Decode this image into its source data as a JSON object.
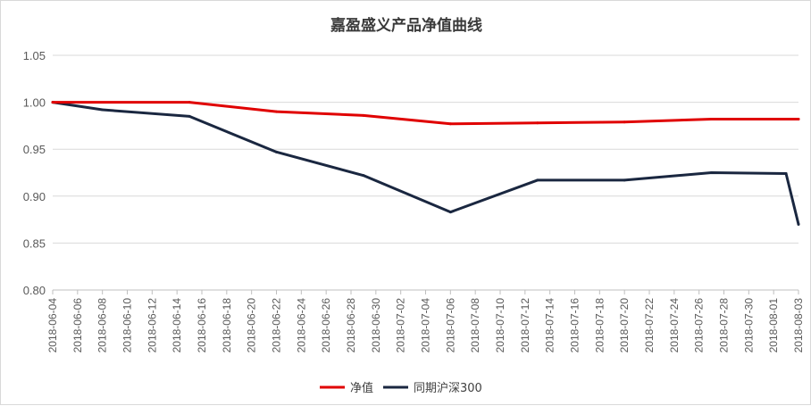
{
  "chart_data": {
    "type": "line",
    "title": "嘉盈盛义产品净值曲线",
    "xlabel": "",
    "ylabel": "",
    "ylim": [
      0.8,
      1.05
    ],
    "y_ticks": [
      "0.80",
      "0.85",
      "0.90",
      "0.95",
      "1.00",
      "1.05"
    ],
    "y_tick_values": [
      0.8,
      0.85,
      0.9,
      0.95,
      1.0,
      1.05
    ],
    "grid": true,
    "legend_position": "bottom",
    "x_axis": {
      "start": "2018-06-04",
      "end": "2018-08-03",
      "tick_labels": [
        "2018-06-04",
        "2018-06-06",
        "2018-06-08",
        "2018-06-10",
        "2018-06-12",
        "2018-06-14",
        "2018-06-16",
        "2018-06-18",
        "2018-06-20",
        "2018-06-22",
        "2018-06-24",
        "2018-06-26",
        "2018-06-28",
        "2018-06-30",
        "2018-07-02",
        "2018-07-04",
        "2018-07-06",
        "2018-07-08",
        "2018-07-10",
        "2018-07-12",
        "2018-07-14",
        "2018-07-16",
        "2018-07-18",
        "2018-07-20",
        "2018-07-22",
        "2018-07-24",
        "2018-07-26",
        "2018-07-28",
        "2018-07-30",
        "2018-08-01",
        "2018-08-03"
      ]
    },
    "series": [
      {
        "name": "净值",
        "color": "#e00000",
        "points": [
          {
            "x": "2018-06-04",
            "y": 1.0
          },
          {
            "x": "2018-06-15",
            "y": 1.0
          },
          {
            "x": "2018-06-22",
            "y": 0.99
          },
          {
            "x": "2018-06-29",
            "y": 0.986
          },
          {
            "x": "2018-07-06",
            "y": 0.977
          },
          {
            "x": "2018-07-13",
            "y": 0.978
          },
          {
            "x": "2018-07-20",
            "y": 0.979
          },
          {
            "x": "2018-07-27",
            "y": 0.982
          },
          {
            "x": "2018-08-03",
            "y": 0.982
          }
        ]
      },
      {
        "name": "同期沪深300",
        "color": "#1a2740",
        "points": [
          {
            "x": "2018-06-04",
            "y": 1.0
          },
          {
            "x": "2018-06-08",
            "y": 0.992
          },
          {
            "x": "2018-06-15",
            "y": 0.985
          },
          {
            "x": "2018-06-22",
            "y": 0.947
          },
          {
            "x": "2018-06-29",
            "y": 0.922
          },
          {
            "x": "2018-07-06",
            "y": 0.883
          },
          {
            "x": "2018-07-13",
            "y": 0.917
          },
          {
            "x": "2018-07-20",
            "y": 0.917
          },
          {
            "x": "2018-07-27",
            "y": 0.925
          },
          {
            "x": "2018-08-02",
            "y": 0.924
          },
          {
            "x": "2018-08-03",
            "y": 0.87
          }
        ]
      }
    ]
  }
}
